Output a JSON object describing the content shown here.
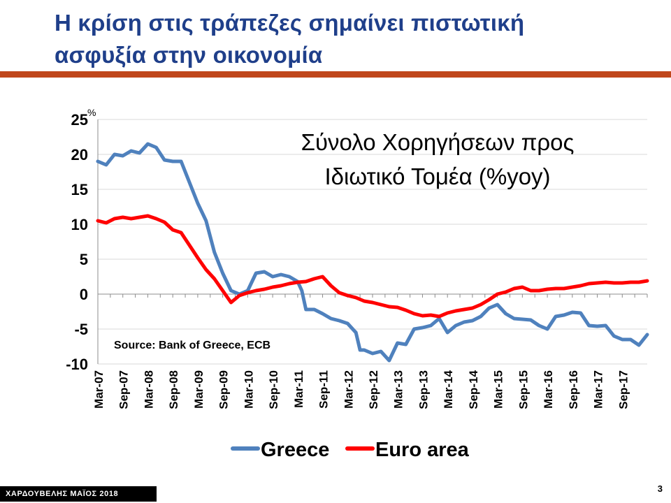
{
  "slide": {
    "title_line1": "Η κρίση στις τράπεζες σημαίνει πιστωτική",
    "title_line2": "ασφυξία στην οικονομία",
    "footer": "ΧΑΡΔΟΥΒΕΛΗΣ ΜΑΪΟΣ 2018",
    "page_number": "3",
    "title_color": "#1f3f8a",
    "rule_color": "#c0461b"
  },
  "chart_data": {
    "type": "line",
    "title_line1": "Σύνολο Χορηγήσεων προς",
    "title_line2": "Ιδιωτικό Τομέα (%yoy)",
    "ylabel": "%",
    "source": "Source: Bank of Greece, ECB",
    "ylim": [
      -10,
      25
    ],
    "yticks": [
      25,
      20,
      15,
      10,
      5,
      0,
      -5,
      -10
    ],
    "grid": true,
    "legend_position": "bottom",
    "x_start": "Mar-07",
    "x_end": "Mar-18",
    "x_tick_labels": [
      "Mar-07",
      "Sep-07",
      "Mar-08",
      "Sep-08",
      "Mar-09",
      "Sep-09",
      "Mar-10",
      "Sep-10",
      "Mar-11",
      "Sep-11",
      "Mar-12",
      "Sep-12",
      "Mar-13",
      "Sep-13",
      "Mar-14",
      "Sep-14",
      "Mar-15",
      "Sep-15",
      "Mar-16",
      "Sep-16",
      "Mar-17",
      "Sep-17"
    ],
    "series": [
      {
        "name": "Greece",
        "color": "#4f81bd",
        "x": [
          "Mar-07",
          "May-07",
          "Jul-07",
          "Sep-07",
          "Nov-07",
          "Jan-08",
          "Mar-08",
          "May-08",
          "Jul-08",
          "Sep-08",
          "Nov-08",
          "Jan-09",
          "Mar-09",
          "May-09",
          "Jul-09",
          "Sep-09",
          "Nov-09",
          "Jan-10",
          "Mar-10",
          "May-10",
          "Jul-10",
          "Sep-10",
          "Nov-10",
          "Jan-11",
          "Mar-11",
          "Apr-11",
          "May-11",
          "Jul-11",
          "Sep-11",
          "Nov-11",
          "Jan-12",
          "Mar-12",
          "May-12",
          "Jun-12",
          "Jul-12",
          "Sep-12",
          "Nov-12",
          "Jan-13",
          "Mar-13",
          "May-13",
          "Jul-13",
          "Sep-13",
          "Nov-13",
          "Jan-14",
          "Mar-14",
          "May-14",
          "Jul-14",
          "Sep-14",
          "Nov-14",
          "Jan-15",
          "Mar-15",
          "May-15",
          "Jul-15",
          "Sep-15",
          "Nov-15",
          "Jan-16",
          "Mar-16",
          "May-16",
          "Jul-16",
          "Sep-16",
          "Nov-16",
          "Jan-17",
          "Mar-17",
          "May-17",
          "Jul-17",
          "Sep-17",
          "Nov-17",
          "Jan-18",
          "Mar-18"
        ],
        "values": [
          19.0,
          18.5,
          20.0,
          19.8,
          20.5,
          20.2,
          21.5,
          21.0,
          19.2,
          19.0,
          19.0,
          16.0,
          13.0,
          10.5,
          6.0,
          3.0,
          0.5,
          0.0,
          0.5,
          3.0,
          3.2,
          2.5,
          2.8,
          2.5,
          1.8,
          0.5,
          -2.2,
          -2.2,
          -2.8,
          -3.5,
          -3.8,
          -4.2,
          -5.5,
          -8.0,
          -8.0,
          -8.5,
          -8.2,
          -9.5,
          -7.0,
          -7.2,
          -5.0,
          -4.8,
          -4.5,
          -3.5,
          -5.5,
          -4.5,
          -4.0,
          -3.8,
          -3.2,
          -2.0,
          -1.5,
          -2.8,
          -3.5,
          -3.6,
          -3.7,
          -4.5,
          -5.0,
          -3.2,
          -3.0,
          -2.6,
          -2.7,
          -4.5,
          -4.6,
          -4.5,
          -6.0,
          -6.5,
          -6.5,
          -7.3,
          -5.8
        ]
      },
      {
        "name": "Euro area",
        "color": "#ff0000",
        "x": [
          "Mar-07",
          "May-07",
          "Jul-07",
          "Sep-07",
          "Nov-07",
          "Jan-08",
          "Mar-08",
          "May-08",
          "Jul-08",
          "Sep-08",
          "Nov-08",
          "Jan-09",
          "Mar-09",
          "May-09",
          "Jul-09",
          "Sep-09",
          "Nov-09",
          "Jan-10",
          "Mar-10",
          "May-10",
          "Jul-10",
          "Sep-10",
          "Nov-10",
          "Jan-11",
          "Mar-11",
          "May-11",
          "Jul-11",
          "Sep-11",
          "Nov-11",
          "Jan-12",
          "Mar-12",
          "May-12",
          "Jul-12",
          "Sep-12",
          "Nov-12",
          "Jan-13",
          "Mar-13",
          "May-13",
          "Jul-13",
          "Sep-13",
          "Nov-13",
          "Jan-14",
          "Mar-14",
          "May-14",
          "Jul-14",
          "Sep-14",
          "Nov-14",
          "Jan-15",
          "Mar-15",
          "May-15",
          "Jul-15",
          "Sep-15",
          "Nov-15",
          "Jan-16",
          "Mar-16",
          "May-16",
          "Jul-16",
          "Sep-16",
          "Nov-16",
          "Jan-17",
          "Mar-17",
          "May-17",
          "Jul-17",
          "Sep-17",
          "Nov-17",
          "Jan-18",
          "Mar-18"
        ],
        "values": [
          10.5,
          10.2,
          10.8,
          11.0,
          10.8,
          11.0,
          11.2,
          10.8,
          10.3,
          9.2,
          8.8,
          7.0,
          5.2,
          3.5,
          2.2,
          0.5,
          -1.2,
          -0.2,
          0.2,
          0.5,
          0.7,
          1.0,
          1.2,
          1.5,
          1.7,
          1.8,
          2.2,
          2.5,
          1.2,
          0.2,
          -0.2,
          -0.5,
          -1.0,
          -1.2,
          -1.5,
          -1.8,
          -1.9,
          -2.3,
          -2.8,
          -3.1,
          -3.0,
          -3.2,
          -2.7,
          -2.4,
          -2.2,
          -2.0,
          -1.5,
          -0.8,
          0.0,
          0.3,
          0.8,
          1.0,
          0.5,
          0.5,
          0.7,
          0.8,
          0.8,
          1.0,
          1.2,
          1.5,
          1.6,
          1.7,
          1.6,
          1.6,
          1.7,
          1.7,
          1.9
        ]
      }
    ]
  }
}
